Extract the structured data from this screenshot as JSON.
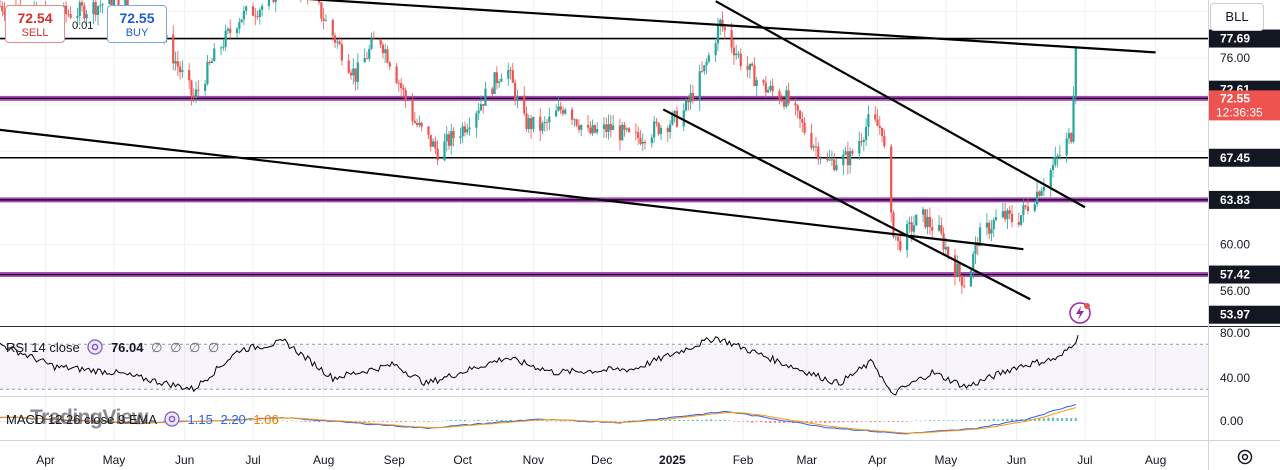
{
  "header": {
    "sell_price": "72.54",
    "sell_label": "SELL",
    "buy_price": "72.55",
    "buy_label": "BUY",
    "spread": "0.01",
    "symbol": "BLL"
  },
  "price_axis": {
    "ticks": [
      "76.00",
      "60.00",
      "56.00"
    ],
    "range": [
      53.0,
      81.0
    ],
    "labels": [
      {
        "text": "77.69",
        "value": 77.69,
        "bg": "#131722",
        "fg": "#ffffff"
      },
      {
        "text": "72.61",
        "value": 72.61,
        "bg": "#131722",
        "fg": "#ffffff",
        "offset": -8
      },
      {
        "text": "67.45",
        "value": 67.45,
        "bg": "#131722",
        "fg": "#ffffff"
      },
      {
        "text": "63.83",
        "value": 63.83,
        "bg": "#131722",
        "fg": "#ffffff"
      },
      {
        "text": "57.42",
        "value": 57.42,
        "bg": "#131722",
        "fg": "#ffffff"
      },
      {
        "text": "53.97",
        "value": 53.97,
        "bg": "#131722",
        "fg": "#ffffff"
      }
    ],
    "current": {
      "price": "72.55",
      "countdown": "12:36:35",
      "value": 72.55,
      "bg": "#ef5350",
      "fg": "#ffffff"
    }
  },
  "time_axis": [
    "Apr",
    "May",
    "Jun",
    "Jul",
    "Aug",
    "Sep",
    "Oct",
    "Nov",
    "Dec",
    "2025",
    "Feb",
    "Mar",
    "Apr",
    "May",
    "Jun",
    "Jul",
    "Aug"
  ],
  "horizontal_levels": [
    {
      "value": 77.69,
      "color": "#000000",
      "kind": "thin"
    },
    {
      "value": 72.55,
      "color": "#9c27b0",
      "kind": "thick"
    },
    {
      "value": 67.45,
      "color": "#000000",
      "kind": "thin"
    },
    {
      "value": 63.83,
      "color": "#9c27b0",
      "kind": "thick"
    },
    {
      "value": 57.42,
      "color": "#9c27b0",
      "kind": "thick"
    }
  ],
  "trendlines": [
    {
      "from": [
        "2024-01-20",
        83.4
      ],
      "to": [
        "2025-08-01",
        76.5
      ]
    },
    {
      "from": [
        "2025-01-20",
        80.9
      ],
      "to": [
        "2025-07-01",
        63.2
      ]
    },
    {
      "from": [
        "2024-12-28",
        71.6
      ],
      "to": [
        "2025-06-07",
        55.3
      ]
    },
    {
      "from": [
        "2024-03-01",
        70.1
      ],
      "to": [
        "2025-06-04",
        59.6
      ]
    }
  ],
  "indicators": {
    "rsi": {
      "label": "RSI 14 close",
      "value": "76.04",
      "extras": [
        "∅",
        "∅",
        "∅",
        "∅"
      ],
      "ticks": [
        "80.00",
        "40.00"
      ],
      "bands": [
        70,
        30
      ]
    },
    "macd": {
      "label": "MACD 12 26 close 9 EMA",
      "values": [
        "1.15",
        "2.20",
        "1.06"
      ],
      "ticks": [
        "0.00"
      ]
    }
  },
  "watermark": "TradingView",
  "colors": {
    "up": "#26a69a",
    "down": "#ef5350",
    "level": "#9c27b0",
    "macd": "#2962ff",
    "signal": "#ff9800"
  },
  "chart_data": {
    "type": "candlestick",
    "x_axis": "date",
    "x_range": [
      "2024-03-12",
      "2025-08-24"
    ],
    "y_range": [
      53.0,
      81.0
    ],
    "close_anchors": [
      [
        "2024-03-12",
        80.5
      ],
      [
        "2024-04-01",
        79.5
      ],
      [
        "2024-04-15",
        80.0
      ],
      [
        "2024-05-01",
        81.0
      ],
      [
        "2024-05-20",
        79.0
      ],
      [
        "2024-06-05",
        72.5
      ],
      [
        "2024-06-15",
        76.5
      ],
      [
        "2024-06-25",
        79.5
      ],
      [
        "2024-07-05",
        80.5
      ],
      [
        "2024-07-15",
        82.5
      ],
      [
        "2024-07-25",
        82.0
      ],
      [
        "2024-08-05",
        78.0
      ],
      [
        "2024-08-15",
        74.5
      ],
      [
        "2024-08-25",
        78.0
      ],
      [
        "2024-09-01",
        75.0
      ],
      [
        "2024-09-10",
        70.5
      ],
      [
        "2024-09-20",
        68.0
      ],
      [
        "2024-10-01",
        70.0
      ],
      [
        "2024-10-10",
        72.5
      ],
      [
        "2024-10-20",
        75.5
      ],
      [
        "2024-10-28",
        70.5
      ],
      [
        "2024-11-05",
        70.0
      ],
      [
        "2024-11-15",
        72.0
      ],
      [
        "2024-11-25",
        69.5
      ],
      [
        "2024-12-05",
        70.0
      ],
      [
        "2024-12-15",
        69.0
      ],
      [
        "2024-12-25",
        70.0
      ],
      [
        "2025-01-05",
        71.0
      ],
      [
        "2025-01-15",
        75.0
      ],
      [
        "2025-01-22",
        79.0
      ],
      [
        "2025-02-01",
        75.5
      ],
      [
        "2025-02-10",
        73.5
      ],
      [
        "2025-02-20",
        72.5
      ],
      [
        "2025-03-01",
        69.5
      ],
      [
        "2025-03-10",
        67.0
      ],
      [
        "2025-03-20",
        67.5
      ],
      [
        "2025-03-28",
        70.5
      ],
      [
        "2025-04-03",
        70.0
      ],
      [
        "2025-04-07",
        62.0
      ],
      [
        "2025-04-10",
        60.0
      ],
      [
        "2025-04-20",
        62.5
      ],
      [
        "2025-04-28",
        61.0
      ],
      [
        "2025-05-05",
        58.0
      ],
      [
        "2025-05-10",
        56.5
      ],
      [
        "2025-05-15",
        60.5
      ],
      [
        "2025-05-25",
        62.5
      ],
      [
        "2025-06-01",
        62.0
      ],
      [
        "2025-06-10",
        64.5
      ],
      [
        "2025-06-18",
        67.0
      ],
      [
        "2025-06-25",
        69.5
      ],
      [
        "2025-06-27",
        77.5
      ],
      [
        "2025-06-28",
        72.55
      ]
    ],
    "rsi_anchors": [
      [
        "2024-03-12",
        70
      ],
      [
        "2024-04-05",
        50
      ],
      [
        "2024-05-01",
        45
      ],
      [
        "2024-06-05",
        30
      ],
      [
        "2024-06-25",
        65
      ],
      [
        "2024-07-15",
        72
      ],
      [
        "2024-08-05",
        40
      ],
      [
        "2024-09-01",
        52
      ],
      [
        "2024-09-15",
        35
      ],
      [
        "2024-10-20",
        58
      ],
      [
        "2024-11-10",
        45
      ],
      [
        "2024-12-15",
        48
      ],
      [
        "2025-01-20",
        76
      ],
      [
        "2025-02-20",
        52
      ],
      [
        "2025-03-15",
        35
      ],
      [
        "2025-03-30",
        55
      ],
      [
        "2025-04-07",
        25
      ],
      [
        "2025-04-25",
        45
      ],
      [
        "2025-05-10",
        32
      ],
      [
        "2025-06-01",
        50
      ],
      [
        "2025-06-20",
        58
      ],
      [
        "2025-06-28",
        76.04
      ]
    ],
    "macd_anchors": [
      [
        "2024-03-12",
        0.5
      ],
      [
        "2024-05-10",
        -0.3
      ],
      [
        "2024-07-15",
        0.4
      ],
      [
        "2024-09-15",
        -0.9
      ],
      [
        "2024-11-01",
        0.2
      ],
      [
        "2024-12-10",
        -0.2
      ],
      [
        "2025-01-25",
        1.2
      ],
      [
        "2025-03-10",
        -0.8
      ],
      [
        "2025-04-12",
        -1.6
      ],
      [
        "2025-05-12",
        -1.0
      ],
      [
        "2025-06-05",
        0.2
      ],
      [
        "2025-06-28",
        2.2
      ]
    ]
  }
}
